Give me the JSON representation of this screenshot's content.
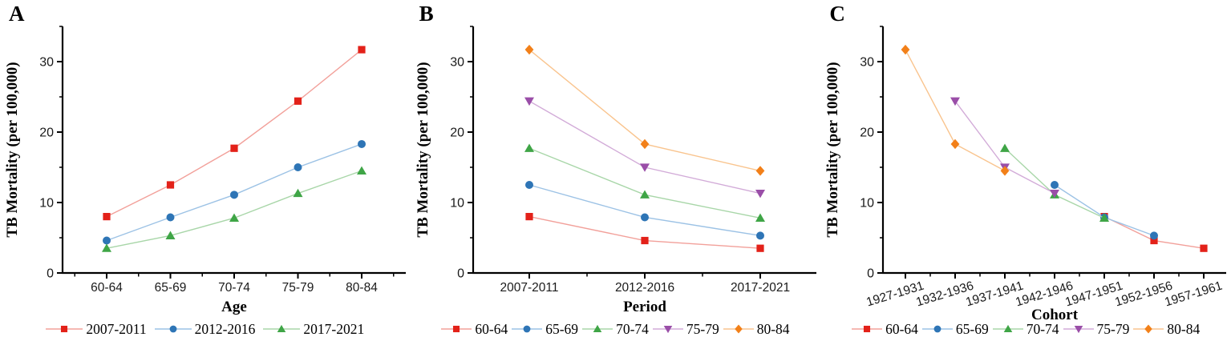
{
  "figure_ylabel": "TB Mortality (per 100,000)",
  "chart_data": [
    {
      "panel_label": "A",
      "type": "line",
      "title": "",
      "xlabel": "Age",
      "ylabel": "TB Mortality (per 100,000)",
      "categories": [
        "60-64",
        "65-69",
        "70-74",
        "75-79",
        "80-84"
      ],
      "series": [
        {
          "name": "2007-2011",
          "marker": "square",
          "color": "#e32119",
          "line_color": "#f2a09a",
          "values": [
            8.0,
            12.5,
            17.7,
            24.4,
            31.7
          ]
        },
        {
          "name": "2012-2016",
          "marker": "circle",
          "color": "#2e75b6",
          "line_color": "#9cc2e5",
          "values": [
            4.6,
            7.9,
            11.1,
            15.0,
            18.3
          ]
        },
        {
          "name": "2017-2021",
          "marker": "triangle-up",
          "color": "#3fa546",
          "line_color": "#a8d6a8",
          "values": [
            3.5,
            5.3,
            7.8,
            11.3,
            14.5
          ]
        }
      ],
      "ylim": [
        0,
        35
      ],
      "yticks": [
        0,
        10,
        20,
        30
      ],
      "y_minor_ticks": [
        5,
        15,
        25,
        35
      ],
      "xtick_rotation": 0,
      "grid": false,
      "legend_position": "bottom"
    },
    {
      "panel_label": "B",
      "type": "line",
      "title": "",
      "xlabel": "Period",
      "ylabel": "TB Mortality (per 100,000)",
      "categories": [
        "2007-2011",
        "2012-2016",
        "2017-2021"
      ],
      "series": [
        {
          "name": "60-64",
          "marker": "square",
          "color": "#e32119",
          "line_color": "#f2a09a",
          "values": [
            8.0,
            4.6,
            3.5
          ]
        },
        {
          "name": "65-69",
          "marker": "circle",
          "color": "#2e75b6",
          "line_color": "#9cc2e5",
          "values": [
            12.5,
            7.9,
            5.3
          ]
        },
        {
          "name": "70-74",
          "marker": "triangle-up",
          "color": "#3fa546",
          "line_color": "#a8d6a8",
          "values": [
            17.7,
            11.1,
            7.8
          ]
        },
        {
          "name": "75-79",
          "marker": "triangle-down",
          "color": "#9a4ea8",
          "line_color": "#d2abd8",
          "values": [
            24.4,
            15.0,
            11.3
          ]
        },
        {
          "name": "80-84",
          "marker": "diamond",
          "color": "#f28019",
          "line_color": "#f9c48e",
          "values": [
            31.7,
            18.3,
            14.5
          ]
        }
      ],
      "ylim": [
        0,
        35
      ],
      "yticks": [
        0,
        10,
        20,
        30
      ],
      "y_minor_ticks": [
        5,
        15,
        25,
        35
      ],
      "xtick_rotation": 0,
      "grid": false,
      "legend_position": "bottom"
    },
    {
      "panel_label": "C",
      "type": "line",
      "title": "",
      "xlabel": "Cohort",
      "ylabel": "TB Mortality (per 100,000)",
      "categories": [
        "1927-1931",
        "1932-1936",
        "1937-1941",
        "1942-1946",
        "1947-1951",
        "1952-1956",
        "1957-1961"
      ],
      "series": [
        {
          "name": "60-64",
          "marker": "square",
          "color": "#e32119",
          "line_color": "#f2a09a",
          "values": [
            null,
            null,
            null,
            null,
            8.0,
            4.6,
            3.5
          ]
        },
        {
          "name": "65-69",
          "marker": "circle",
          "color": "#2e75b6",
          "line_color": "#9cc2e5",
          "values": [
            null,
            null,
            null,
            12.5,
            7.9,
            5.3,
            null
          ]
        },
        {
          "name": "70-74",
          "marker": "triangle-up",
          "color": "#3fa546",
          "line_color": "#a8d6a8",
          "values": [
            null,
            null,
            17.7,
            11.1,
            7.8,
            null,
            null
          ]
        },
        {
          "name": "75-79",
          "marker": "triangle-down",
          "color": "#9a4ea8",
          "line_color": "#d2abd8",
          "values": [
            null,
            24.4,
            15.0,
            11.3,
            null,
            null,
            null
          ]
        },
        {
          "name": "80-84",
          "marker": "diamond",
          "color": "#f28019",
          "line_color": "#f9c48e",
          "values": [
            31.7,
            18.3,
            14.5,
            null,
            null,
            null,
            null
          ]
        }
      ],
      "ylim": [
        0,
        35
      ],
      "yticks": [
        0,
        10,
        20,
        30
      ],
      "y_minor_ticks": [
        5,
        15,
        25,
        35
      ],
      "xtick_rotation": -17,
      "grid": false,
      "legend_position": "bottom"
    }
  ],
  "axis_color": "#000000"
}
